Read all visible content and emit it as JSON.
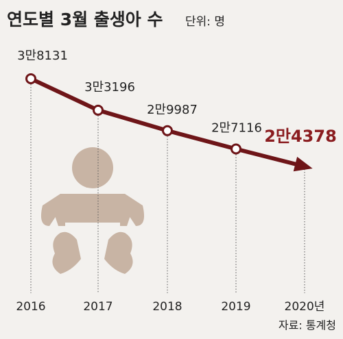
{
  "chart_data": {
    "type": "line",
    "title": "연도별 3월 출생아 수",
    "subtitle": "단위: 명",
    "source": "자료: 통계청",
    "categories": [
      "2016",
      "2017",
      "2018",
      "2019",
      "2020년"
    ],
    "values": [
      38131,
      33196,
      29987,
      27116,
      24378
    ],
    "value_labels": [
      "3만8131",
      "3만3196",
      "2만9987",
      "2만7116",
      "2만4378"
    ],
    "color": "#6e1518",
    "highlight_color": "#8a1c1f",
    "ylim": [
      0,
      45000
    ]
  }
}
